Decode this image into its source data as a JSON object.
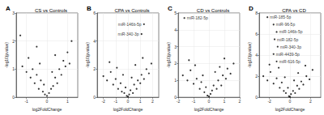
{
  "chart_data": [
    {
      "type": "scatter",
      "tag": "A",
      "title": "CS vs Controls",
      "x_label": "log2FoldChange",
      "y_label": "-log10(pvalue)",
      "color": "#000000",
      "grid": true,
      "xlim": [
        -1.5,
        1.5
      ],
      "xticks": [
        -1,
        0,
        1
      ],
      "ylim": [
        0,
        3
      ],
      "yticks": [
        0,
        1,
        2,
        3
      ],
      "points": [
        [
          -1.2,
          1.1
        ],
        [
          -1.0,
          0.9
        ],
        [
          -0.9,
          1.4
        ],
        [
          -0.8,
          0.7
        ],
        [
          -0.7,
          1.0
        ],
        [
          -0.6,
          0.5
        ],
        [
          -0.5,
          0.8
        ],
        [
          -0.4,
          0.3
        ],
        [
          -0.3,
          0.6
        ],
        [
          -0.2,
          0.2
        ],
        [
          -0.1,
          0.1
        ],
        [
          0,
          0.05
        ],
        [
          0.1,
          0.15
        ],
        [
          0.2,
          0.3
        ],
        [
          0.3,
          0.4
        ],
        [
          0.4,
          0.7
        ],
        [
          0.5,
          0.5
        ],
        [
          0.6,
          1.0
        ],
        [
          0.7,
          0.8
        ],
        [
          0.8,
          1.3
        ],
        [
          0.9,
          1.1
        ],
        [
          1.0,
          1.6
        ],
        [
          1.1,
          1.2
        ],
        [
          -1.3,
          2.2
        ],
        [
          1.2,
          2.0
        ],
        [
          -0.5,
          1.8
        ],
        [
          0.4,
          1.5
        ],
        [
          -0.15,
          0.45
        ],
        [
          0.25,
          0.9
        ],
        [
          -0.35,
          1.2
        ]
      ],
      "annotations": []
    },
    {
      "type": "scatter",
      "tag": "B",
      "title": "CPA vs Controls",
      "x_label": "log2FoldChange",
      "y_label": "-log10(pvalue)",
      "color": "#000000",
      "grid": true,
      "xlim": [
        -2.5,
        2.5
      ],
      "xticks": [
        -2,
        -1,
        0,
        1,
        2
      ],
      "ylim": [
        0,
        6
      ],
      "yticks": [
        0,
        2,
        4,
        6
      ],
      "points": [
        [
          -2.0,
          1.5
        ],
        [
          -1.7,
          1.2
        ],
        [
          -1.4,
          1.8
        ],
        [
          -1.2,
          0.9
        ],
        [
          -1.0,
          1.3
        ],
        [
          -0.8,
          0.6
        ],
        [
          -0.6,
          1.0
        ],
        [
          -0.5,
          0.4
        ],
        [
          -0.3,
          0.3
        ],
        [
          -0.2,
          0.7
        ],
        [
          -0.1,
          0.1
        ],
        [
          0,
          0.05
        ],
        [
          0.1,
          0.2
        ],
        [
          0.2,
          0.5
        ],
        [
          0.4,
          0.3
        ],
        [
          0.5,
          0.9
        ],
        [
          0.7,
          0.6
        ],
        [
          0.8,
          1.2
        ],
        [
          1.0,
          1.0
        ],
        [
          1.1,
          1.6
        ],
        [
          1.3,
          1.3
        ],
        [
          1.5,
          2.0
        ],
        [
          1.7,
          1.7
        ],
        [
          1.9,
          2.4
        ],
        [
          -0.9,
          2.1
        ],
        [
          0.6,
          2.3
        ],
        [
          1.2,
          2.8
        ],
        [
          -1.5,
          2.5
        ],
        [
          0.3,
          1.4
        ],
        [
          -0.4,
          1.6
        ]
      ],
      "annotations": [
        {
          "text": "miR-146b-5p",
          "x": 1.3,
          "y": 5.2
        },
        {
          "text": "miR-340-3p",
          "x": 1.1,
          "y": 4.5
        }
      ]
    },
    {
      "type": "scatter",
      "tag": "C",
      "title": "CD vs Controls",
      "x_label": "log2FoldChange",
      "y_label": "-log10(pvalue)",
      "color": "#000000",
      "grid": true,
      "xlim": [
        -2,
        2
      ],
      "xticks": [
        -2,
        -1,
        0,
        1,
        2
      ],
      "ylim": [
        0,
        5
      ],
      "yticks": [
        0,
        1,
        2,
        3,
        4,
        5
      ],
      "points": [
        [
          -1.7,
          1.3
        ],
        [
          -1.4,
          1.0
        ],
        [
          -1.2,
          1.6
        ],
        [
          -1.0,
          0.8
        ],
        [
          -0.8,
          1.1
        ],
        [
          -0.6,
          0.5
        ],
        [
          -0.5,
          0.9
        ],
        [
          -0.3,
          0.3
        ],
        [
          -0.2,
          0.6
        ],
        [
          -0.1,
          0.1
        ],
        [
          0,
          0.05
        ],
        [
          0.1,
          0.2
        ],
        [
          0.2,
          0.4
        ],
        [
          0.3,
          0.7
        ],
        [
          0.5,
          0.5
        ],
        [
          0.6,
          1.0
        ],
        [
          0.8,
          0.7
        ],
        [
          0.9,
          1.3
        ],
        [
          1.1,
          1.1
        ],
        [
          1.2,
          1.7
        ],
        [
          1.4,
          1.4
        ],
        [
          1.6,
          2.0
        ],
        [
          -0.9,
          1.9
        ],
        [
          0.4,
          1.5
        ],
        [
          1.0,
          2.3
        ],
        [
          -1.3,
          2.2
        ],
        [
          -0.4,
          1.3
        ],
        [
          0.7,
          1.8
        ]
      ],
      "annotations": [
        {
          "text": "miR-182-5p",
          "x": -1.6,
          "y": 4.7
        }
      ]
    },
    {
      "type": "scatter",
      "tag": "D",
      "title": "CPA vs CD",
      "x_label": "log2FoldChange",
      "y_label": "-log10(pvalue)",
      "color": "#000000",
      "grid": true,
      "xlim": [
        -3,
        3
      ],
      "xticks": [
        -2,
        0,
        2
      ],
      "ylim": [
        0,
        8
      ],
      "yticks": [
        0,
        2,
        4,
        6,
        8
      ],
      "points": [
        [
          -2.6,
          2.0
        ],
        [
          -2.2,
          1.6
        ],
        [
          -1.9,
          2.4
        ],
        [
          -1.6,
          1.3
        ],
        [
          -1.3,
          1.8
        ],
        [
          -1.0,
          0.9
        ],
        [
          -0.8,
          1.4
        ],
        [
          -0.6,
          0.6
        ],
        [
          -0.4,
          0.4
        ],
        [
          -0.2,
          0.9
        ],
        [
          -0.1,
          0.1
        ],
        [
          0,
          0.05
        ],
        [
          0.1,
          0.3
        ],
        [
          0.3,
          0.6
        ],
        [
          0.5,
          0.4
        ],
        [
          0.7,
          1.1
        ],
        [
          0.9,
          0.8
        ],
        [
          1.1,
          1.5
        ],
        [
          1.3,
          1.2
        ],
        [
          1.6,
          2.0
        ],
        [
          1.9,
          1.7
        ],
        [
          2.2,
          2.6
        ],
        [
          -1.1,
          2.8
        ],
        [
          0.8,
          2.3
        ],
        [
          1.5,
          3.0
        ],
        [
          -2.0,
          3.1
        ],
        [
          -0.5,
          1.9
        ],
        [
          0.4,
          1.6
        ]
      ],
      "annotations": [
        {
          "text": "miR-185-5p",
          "x": -2.2,
          "y": 7.6
        },
        {
          "text": "miR-96-5p",
          "x": -1.6,
          "y": 6.9
        },
        {
          "text": "miR-146b-5p",
          "x": -1.3,
          "y": 6.2
        },
        {
          "text": "miR-182-5p",
          "x": -1.5,
          "y": 5.5
        },
        {
          "text": "miR-340-3p",
          "x": -1.2,
          "y": 4.8
        },
        {
          "text": "miR-4439-5p",
          "x": -1.6,
          "y": 4.1
        },
        {
          "text": "miR-616-5p",
          "x": -1.3,
          "y": 3.4
        }
      ]
    }
  ]
}
